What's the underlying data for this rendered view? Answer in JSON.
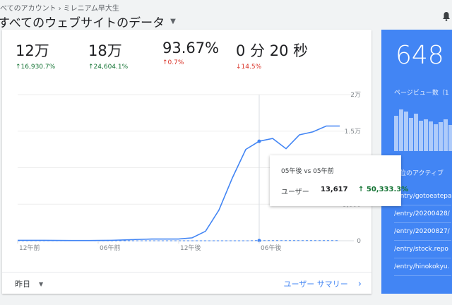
{
  "header": {
    "breadcrumb": [
      "べてのアカウント",
      "ミレニアム早大生"
    ],
    "title": "すべてのウェブサイトのデータ",
    "icons": {
      "caret": "caret-down-icon",
      "bell": "bell-icon"
    }
  },
  "metrics": [
    {
      "value": "12万",
      "change": "16,930.7%",
      "direction": "up"
    },
    {
      "value": "18万",
      "change": "24,604.1%",
      "direction": "up"
    },
    {
      "value": "93.67%",
      "change": "0.7%",
      "direction": "up"
    },
    {
      "value": "0 分 20 秒",
      "change": "14.5%",
      "direction": "down"
    }
  ],
  "chart_data": {
    "type": "line",
    "x": [
      "12午前",
      "",
      "",
      "",
      "",
      "",
      "06午前",
      "",
      "",
      "",
      "",
      "",
      "12午後",
      "",
      "",
      "",
      "",
      "",
      "06午後",
      "",
      "",
      "",
      "",
      "",
      ""
    ],
    "x_tick_labels": [
      "12午前",
      "06午前",
      "12午後",
      "06午後"
    ],
    "series": [
      {
        "values": [
          60,
          60,
          50,
          40,
          30,
          30,
          40,
          60,
          120,
          180,
          240,
          240,
          240,
          400,
          1300,
          4200,
          8600,
          12500,
          13617,
          14000,
          12600,
          14500,
          14900,
          15700,
          15700
        ],
        "color": "#4285f4",
        "style": "solid"
      },
      {
        "values": [
          0,
          0,
          0,
          0,
          0,
          0,
          0,
          0,
          0,
          0,
          0,
          0,
          0,
          0,
          0,
          0,
          0,
          0,
          27,
          27,
          27,
          27,
          27,
          27,
          27
        ],
        "color": "#4285f4",
        "style": "dashed"
      }
    ],
    "y_ticks": [
      "0",
      "5,000",
      "",
      "1.5万",
      "2万"
    ],
    "y_tick_values": [
      0,
      5000,
      10000,
      15000,
      20000
    ],
    "ylim": [
      0,
      20000
    ],
    "grid": true,
    "highlight_index": 18
  },
  "tooltip": {
    "title": "05午後 vs 05午前",
    "label": "ユーザー",
    "value": "13,617",
    "change": "50,333.3%"
  },
  "footer": {
    "period": "昨日",
    "summary_link": "ユーザー サマリー"
  },
  "realtime": {
    "value": "648",
    "pageviews_label": "ページビュー数（1",
    "bar_levels": [
      0.8,
      0.95,
      0.9,
      0.75,
      0.85,
      0.7,
      0.72,
      0.68,
      0.62,
      0.66,
      0.72,
      0.6,
      0.58,
      0.65
    ],
    "active_label": "位のアクティブ",
    "links": [
      "/entry/gotoeatepa",
      "/entry/20200428/",
      "/entry/20200827/",
      "/entry/stock.repo",
      "/entry/hinokokyu."
    ]
  }
}
